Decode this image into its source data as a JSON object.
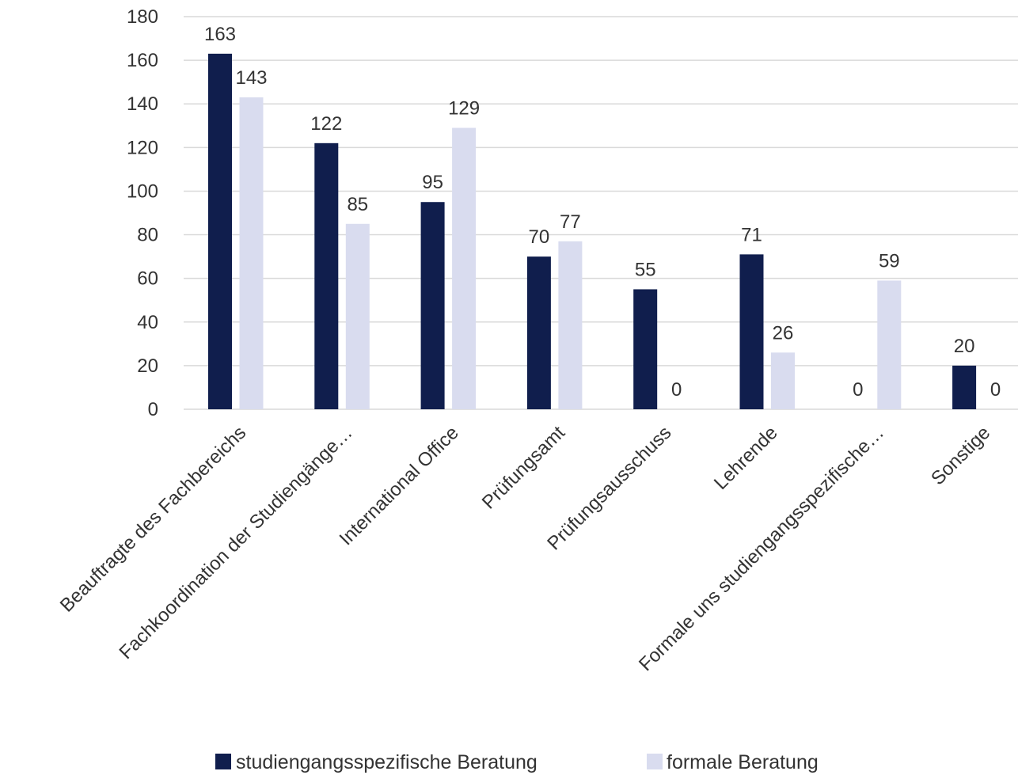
{
  "chart_data": {
    "type": "bar",
    "title": "",
    "xlabel": "",
    "ylabel": "",
    "ylim": [
      0,
      180
    ],
    "yticks": [
      0,
      20,
      40,
      60,
      80,
      100,
      120,
      140,
      160,
      180
    ],
    "grid": true,
    "legend_position": "bottom",
    "categories": [
      "Beauftragte des Fachbereichs",
      "Fachkoordination der Studiengänge…",
      "International Office",
      "Prüfungsamt",
      "Prüfungsausschuss",
      "Lehrende",
      "Formale uns studiengangsspezifische…",
      "Sonstige"
    ],
    "series": [
      {
        "name": "studiengangsspezifische Beratung",
        "color": "#101e4d",
        "values": [
          163,
          122,
          95,
          70,
          55,
          71,
          0,
          20
        ]
      },
      {
        "name": "formale Beratung",
        "color": "#d9dcef",
        "values": [
          143,
          85,
          129,
          77,
          0,
          26,
          59,
          0
        ]
      }
    ]
  }
}
